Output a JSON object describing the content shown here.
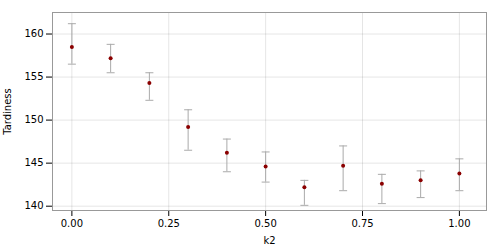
{
  "chart_data": {
    "type": "errorbar",
    "xlabel": "k2",
    "ylabel": "Tardiness",
    "x": [
      0.0,
      0.1,
      0.2,
      0.3,
      0.4,
      0.5,
      0.6,
      0.7,
      0.8,
      0.9,
      1.0
    ],
    "values": [
      158.5,
      157.2,
      154.3,
      149.2,
      146.2,
      144.6,
      142.2,
      144.7,
      142.6,
      143.0,
      143.8
    ],
    "lower": [
      156.5,
      155.5,
      152.3,
      146.5,
      144.0,
      142.8,
      140.1,
      141.8,
      140.3,
      141.0,
      141.8
    ],
    "upper": [
      161.2,
      158.8,
      155.5,
      151.2,
      147.8,
      146.3,
      143.0,
      147.0,
      143.7,
      144.1,
      145.5
    ],
    "color": "#8B0000",
    "xlim": [
      -0.05,
      1.07
    ],
    "xticks": [
      {
        "value": 0.0,
        "label": "0.00"
      },
      {
        "value": 0.25,
        "label": "0.25"
      },
      {
        "value": 0.5,
        "label": "0.50"
      },
      {
        "value": 0.75,
        "label": "0.75"
      },
      {
        "value": 1.0,
        "label": "1.00"
      }
    ],
    "ylim": [
      139.5,
      162.5
    ],
    "yticks": [
      140,
      145,
      150,
      155,
      160
    ],
    "grid": true
  }
}
